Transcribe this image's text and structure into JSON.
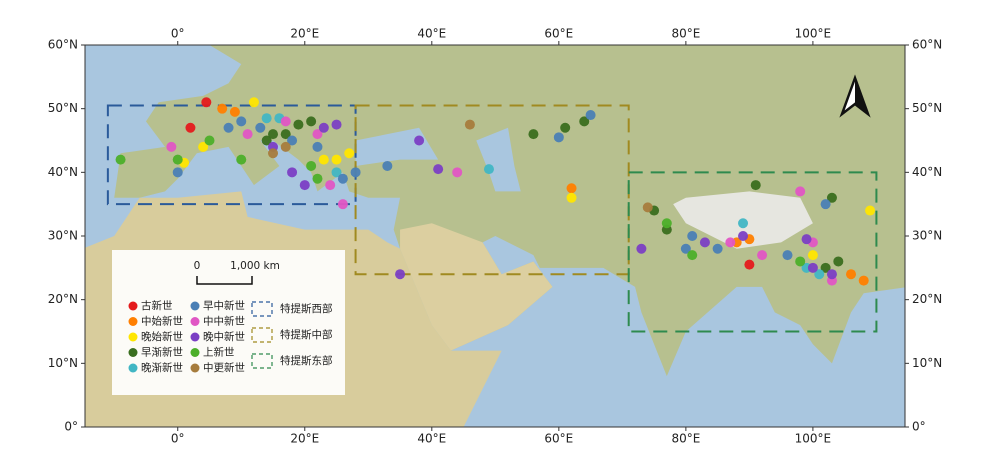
{
  "chart_data": {
    "type": "scatter",
    "xlim": [
      -14.6,
      114.5
    ],
    "ylim": [
      0,
      60
    ],
    "xticks": [
      {
        "value": 0,
        "label": "0°"
      },
      {
        "value": 20,
        "label": "20°E"
      },
      {
        "value": 40,
        "label": "40°E"
      },
      {
        "value": 60,
        "label": "60°E"
      },
      {
        "value": 80,
        "label": "80°E"
      },
      {
        "value": 100,
        "label": "100°E"
      }
    ],
    "yticks": [
      {
        "value": 0,
        "label": "0°"
      },
      {
        "value": 10,
        "label": "10°N"
      },
      {
        "value": 20,
        "label": "20°N"
      },
      {
        "value": 30,
        "label": "30°N"
      },
      {
        "value": 40,
        "label": "40°N"
      },
      {
        "value": 50,
        "label": "50°N"
      },
      {
        "value": 60,
        "label": "60°N"
      }
    ],
    "scale_bar": [
      "0",
      "1,000 km"
    ],
    "series": [
      {
        "name": "古新世",
        "color": "#e41a1c",
        "x": [
          4.5,
          2,
          90
        ],
        "y": [
          51,
          47,
          25.5
        ]
      },
      {
        "name": "中始新世",
        "color": "#ff7f00",
        "x": [
          7,
          9,
          62,
          88,
          90,
          106,
          108
        ],
        "y": [
          50,
          49.5,
          37.5,
          29,
          29.5,
          24,
          23
        ]
      },
      {
        "name": "晚始新世",
        "color": "#ffe600",
        "x": [
          12,
          4,
          1,
          23,
          25,
          27,
          62,
          109,
          100
        ],
        "y": [
          51,
          44,
          41.5,
          42,
          42,
          43,
          36,
          34,
          27
        ]
      },
      {
        "name": "早渐新世",
        "color": "#3a6e1f",
        "x": [
          15,
          17,
          19,
          21,
          14,
          56,
          61,
          64,
          91,
          75,
          77,
          103,
          102,
          104
        ],
        "y": [
          46,
          46,
          47.5,
          48,
          45,
          46,
          47,
          48,
          38,
          34,
          31,
          36,
          25,
          26
        ]
      },
      {
        "name": "晚渐新世",
        "color": "#41b6c4",
        "x": [
          14,
          16,
          25,
          49,
          89,
          101,
          99
        ],
        "y": [
          48.5,
          48.5,
          40,
          40.5,
          32,
          24,
          25
        ]
      },
      {
        "name": "早中新世",
        "color": "#4a7fb5",
        "x": [
          0,
          8,
          10,
          13,
          18,
          22,
          26,
          28,
          33,
          60,
          65,
          80,
          85,
          102,
          81,
          96
        ],
        "y": [
          40,
          47,
          48,
          47,
          45,
          44,
          39,
          40,
          41,
          45.5,
          49,
          28,
          28,
          35,
          30,
          27
        ]
      },
      {
        "name": "中中新世",
        "color": "#e056c4",
        "x": [
          -1,
          11,
          17,
          22,
          24,
          26,
          44,
          87,
          98,
          92,
          100,
          103
        ],
        "y": [
          44,
          46,
          48,
          46,
          38,
          35,
          40,
          29,
          37,
          27,
          29,
          23
        ]
      },
      {
        "name": "晚中新世",
        "color": "#7b3fc4",
        "x": [
          15,
          18,
          20,
          23,
          25,
          35,
          41,
          38,
          73,
          83,
          99,
          89,
          103,
          100
        ],
        "y": [
          44,
          40,
          38,
          47,
          47.5,
          24,
          40.5,
          45,
          28,
          29,
          29.5,
          30,
          24,
          25
        ]
      },
      {
        "name": "上新世",
        "color": "#4caf2a",
        "x": [
          -9,
          0,
          5,
          21,
          22,
          10,
          77,
          81,
          98
        ],
        "y": [
          42,
          42,
          45,
          41,
          39,
          42,
          32,
          27,
          26
        ]
      },
      {
        "name": "中更新世",
        "color": "#a67c3d",
        "x": [
          17,
          46,
          74,
          15
        ],
        "y": [
          44,
          47.5,
          34.5,
          43
        ]
      }
    ],
    "regions": [
      {
        "name": "特提斯西部",
        "color": "#2a5a9a",
        "xlim": [
          -11,
          28
        ],
        "ylim": [
          35,
          50.5
        ]
      },
      {
        "name": "特提斯中部",
        "color": "#a08a20",
        "xlim": [
          28,
          71
        ],
        "ylim": [
          24,
          50.5
        ]
      },
      {
        "name": "特提斯东部",
        "color": "#2e8a4e",
        "xlim": [
          71,
          110
        ],
        "ylim": [
          15,
          40
        ]
      }
    ]
  }
}
